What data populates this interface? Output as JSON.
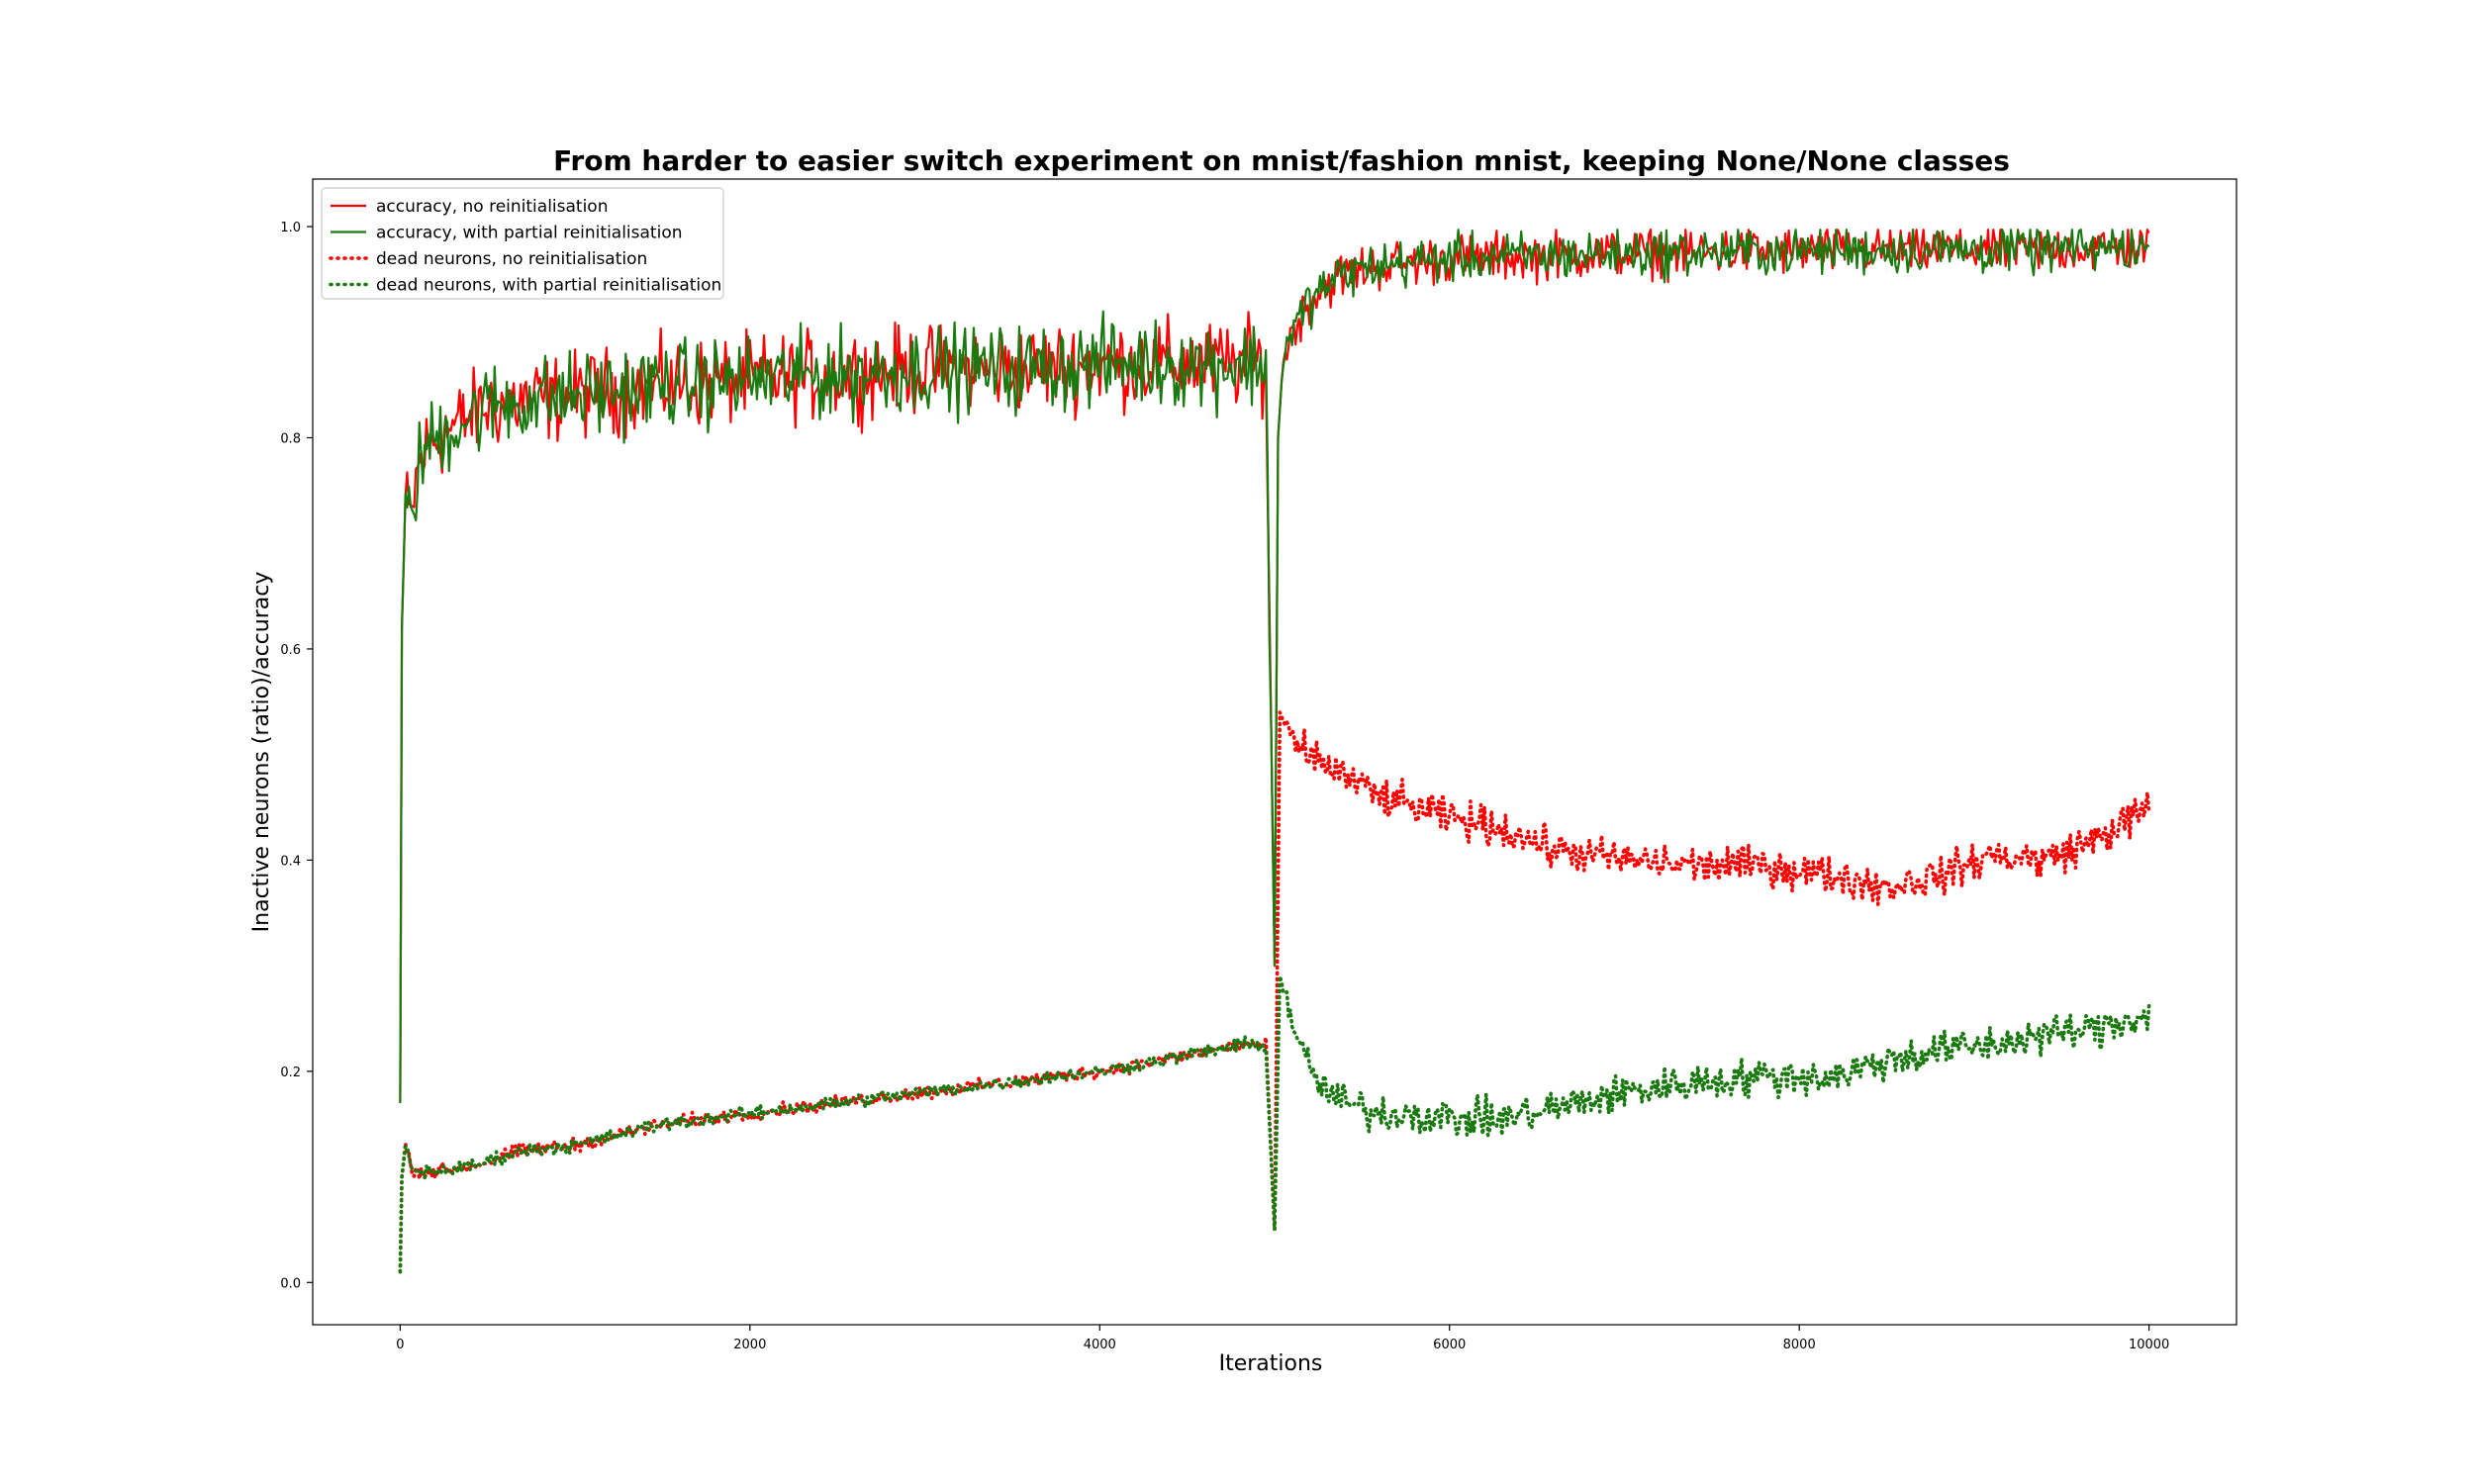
{
  "chart_data": {
    "type": "line",
    "title": "From harder to easier switch experiment on mnist/fashion mnist, keeping None/None classes",
    "xlabel": "Iterations",
    "ylabel": "Inactive neurons (ratio)/accuracy",
    "xlim": [
      -500,
      10500
    ],
    "ylim": [
      -0.04,
      1.045
    ],
    "xticks": [
      0,
      2000,
      4000,
      6000,
      8000,
      10000
    ],
    "xtick_labels": [
      "0",
      "2000",
      "4000",
      "6000",
      "8000",
      "10000"
    ],
    "yticks": [
      0.0,
      0.2,
      0.4,
      0.6,
      0.8,
      1.0
    ],
    "ytick_labels": [
      "0.0",
      "0.2",
      "0.4",
      "0.6",
      "0.8",
      "1.0"
    ],
    "grid": false,
    "legend_position": "upper-left",
    "switch_iteration": 5000,
    "series": [
      {
        "name": "accuracy, no reinitialisation",
        "color": "#ff0000",
        "style": "solid",
        "x": [
          0,
          10,
          30,
          60,
          100,
          150,
          200,
          300,
          400,
          500,
          700,
          1000,
          1500,
          2000,
          2500,
          3000,
          3500,
          4000,
          4500,
          4950,
          5000,
          5020,
          5050,
          5100,
          5200,
          5300,
          5400,
          5500,
          5700,
          6000,
          6500,
          7000,
          7500,
          8000,
          8500,
          9000,
          9500,
          10000
        ],
        "y": [
          0.17,
          0.62,
          0.74,
          0.72,
          0.77,
          0.79,
          0.8,
          0.81,
          0.82,
          0.83,
          0.835,
          0.84,
          0.85,
          0.855,
          0.86,
          0.865,
          0.865,
          0.87,
          0.87,
          0.87,
          0.3,
          0.8,
          0.88,
          0.9,
          0.93,
          0.945,
          0.955,
          0.96,
          0.965,
          0.97,
          0.972,
          0.975,
          0.976,
          0.977,
          0.978,
          0.978,
          0.979,
          0.98
        ]
      },
      {
        "name": "accuracy, with partial reinitialisation",
        "color": "#1a7a10",
        "style": "solid",
        "x": [
          0,
          10,
          30,
          60,
          100,
          150,
          200,
          300,
          400,
          500,
          700,
          1000,
          1500,
          2000,
          2500,
          3000,
          3500,
          4000,
          4500,
          4950,
          5000,
          5020,
          5050,
          5100,
          5200,
          5300,
          5400,
          5500,
          5700,
          6000,
          6500,
          7000,
          7500,
          8000,
          8500,
          9000,
          9500,
          10000
        ],
        "y": [
          0.17,
          0.62,
          0.74,
          0.72,
          0.77,
          0.79,
          0.8,
          0.81,
          0.82,
          0.83,
          0.835,
          0.84,
          0.85,
          0.855,
          0.86,
          0.865,
          0.865,
          0.87,
          0.87,
          0.87,
          0.3,
          0.8,
          0.88,
          0.9,
          0.93,
          0.945,
          0.955,
          0.96,
          0.965,
          0.97,
          0.972,
          0.975,
          0.976,
          0.977,
          0.978,
          0.978,
          0.979,
          0.98
        ]
      },
      {
        "name": "dead neurons, no reinitialisation",
        "color": "#ff0000",
        "style": "dotted",
        "x": [
          0,
          10,
          30,
          60,
          100,
          200,
          400,
          700,
          1000,
          1500,
          2000,
          2500,
          3000,
          3500,
          4000,
          4500,
          4800,
          4950,
          5000,
          5030,
          5100,
          5200,
          5400,
          5600,
          5800,
          6000,
          6300,
          6600,
          7000,
          7400,
          7800,
          8200,
          8500,
          8800,
          9100,
          9400,
          9700,
          10000
        ],
        "y": [
          0.01,
          0.1,
          0.13,
          0.11,
          0.105,
          0.105,
          0.11,
          0.125,
          0.13,
          0.15,
          0.16,
          0.17,
          0.18,
          0.19,
          0.2,
          0.215,
          0.225,
          0.225,
          0.05,
          0.54,
          0.51,
          0.5,
          0.48,
          0.46,
          0.45,
          0.44,
          0.43,
          0.41,
          0.4,
          0.395,
          0.395,
          0.385,
          0.375,
          0.385,
          0.405,
          0.4,
          0.42,
          0.45
        ]
      },
      {
        "name": "dead neurons, with partial reinitialisation",
        "color": "#1a7a10",
        "style": "dotted",
        "x": [
          0,
          10,
          30,
          60,
          100,
          200,
          400,
          700,
          1000,
          1500,
          2000,
          2500,
          3000,
          3500,
          4000,
          4500,
          4800,
          4950,
          5000,
          5030,
          5100,
          5200,
          5300,
          5400,
          5600,
          5800,
          6000,
          6300,
          6600,
          7000,
          7400,
          7800,
          8200,
          8500,
          8800,
          9100,
          9400,
          9700,
          10000
        ],
        "y": [
          0.01,
          0.1,
          0.13,
          0.11,
          0.105,
          0.105,
          0.11,
          0.125,
          0.13,
          0.15,
          0.16,
          0.17,
          0.18,
          0.19,
          0.2,
          0.215,
          0.225,
          0.225,
          0.05,
          0.29,
          0.25,
          0.2,
          0.18,
          0.17,
          0.16,
          0.16,
          0.155,
          0.155,
          0.165,
          0.18,
          0.19,
          0.195,
          0.195,
          0.21,
          0.22,
          0.225,
          0.235,
          0.24,
          0.255
        ]
      }
    ]
  }
}
